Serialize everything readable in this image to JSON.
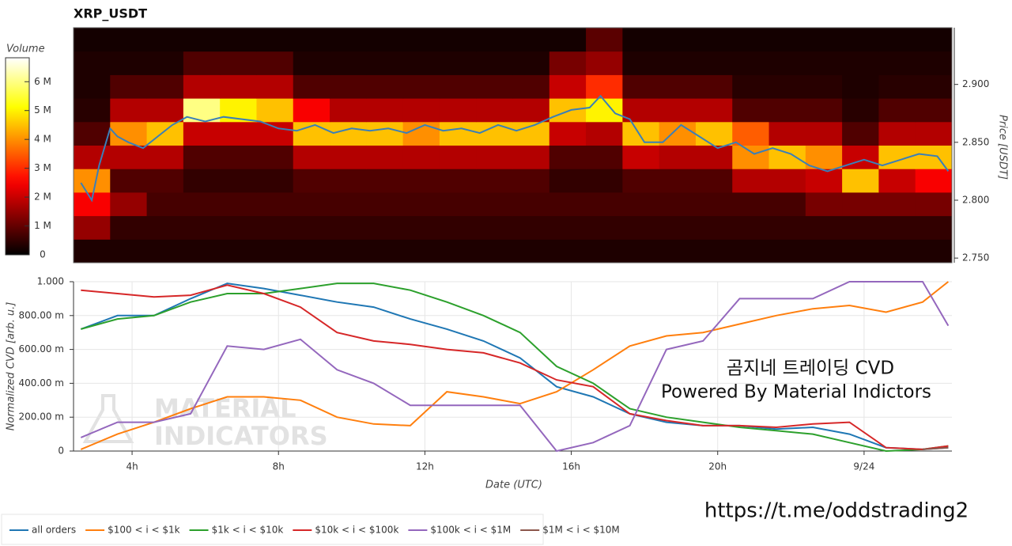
{
  "chart_data": [
    {
      "type": "heatmap",
      "title": "XRP_USDT",
      "colormap": "hot",
      "xlim": [
        2.4,
        26.4
      ],
      "x_bins": [
        2.4,
        3.4,
        4.4,
        5.4,
        6.4,
        7.4,
        8.4,
        9.4,
        10.4,
        11.4,
        12.4,
        13.4,
        14.4,
        15.4,
        16.4,
        17.4,
        18.4,
        19.4,
        20.4,
        21.4,
        22.4,
        23.4,
        24.4,
        25.4,
        26.4
      ],
      "y_bins": [
        2.746,
        2.7663,
        2.7866,
        2.8069,
        2.8272,
        2.8475,
        2.8678,
        2.8881,
        2.9084,
        2.9287,
        2.949
      ],
      "values": [
        [
          300000,
          300000,
          300000,
          300000,
          300000,
          300000,
          300000,
          300000,
          300000,
          300000,
          300000,
          300000,
          300000,
          300000,
          300000,
          300000,
          300000,
          300000,
          300000,
          300000,
          300000,
          300000,
          300000,
          300000
        ],
        [
          1500000,
          500000,
          500000,
          500000,
          500000,
          500000,
          500000,
          500000,
          500000,
          500000,
          500000,
          500000,
          500000,
          500000,
          500000,
          500000,
          500000,
          500000,
          500000,
          500000,
          500000,
          500000,
          500000,
          500000
        ],
        [
          2500000,
          1500000,
          700000,
          700000,
          700000,
          700000,
          700000,
          700000,
          700000,
          700000,
          700000,
          700000,
          700000,
          700000,
          700000,
          700000,
          700000,
          700000,
          700000,
          700000,
          1200000,
          1200000,
          1200000,
          1200000
        ],
        [
          4000000,
          800000,
          800000,
          500000,
          500000,
          500000,
          800000,
          800000,
          800000,
          800000,
          800000,
          800000,
          800000,
          500000,
          500000,
          800000,
          800000,
          800000,
          1800000,
          1800000,
          2000000,
          4500000,
          2000000,
          2500000
        ],
        [
          1800000,
          1800000,
          1800000,
          800000,
          800000,
          800000,
          1800000,
          1800000,
          1800000,
          1800000,
          1800000,
          1800000,
          1800000,
          800000,
          800000,
          2000000,
          1800000,
          1800000,
          4000000,
          4500000,
          4000000,
          2000000,
          4500000,
          4500000
        ],
        [
          800000,
          4000000,
          4500000,
          2000000,
          2000000,
          2000000,
          4500000,
          4500000,
          4500000,
          4000000,
          4500000,
          4500000,
          4500000,
          2000000,
          1800000,
          4500000,
          4000000,
          4500000,
          3500000,
          1800000,
          1800000,
          800000,
          1800000,
          1800000
        ],
        [
          400000,
          1800000,
          1800000,
          6000000,
          5000000,
          4500000,
          2500000,
          1800000,
          1800000,
          1800000,
          1800000,
          1800000,
          1800000,
          4500000,
          5000000,
          1800000,
          1800000,
          1800000,
          800000,
          800000,
          800000,
          400000,
          800000,
          800000
        ],
        [
          300000,
          800000,
          800000,
          1800000,
          1800000,
          1800000,
          800000,
          800000,
          800000,
          800000,
          800000,
          800000,
          800000,
          2000000,
          3000000,
          800000,
          800000,
          800000,
          400000,
          400000,
          400000,
          300000,
          400000,
          400000
        ],
        [
          300000,
          300000,
          300000,
          800000,
          800000,
          800000,
          300000,
          300000,
          300000,
          300000,
          300000,
          300000,
          300000,
          1200000,
          1500000,
          300000,
          300000,
          300000,
          300000,
          300000,
          300000,
          300000,
          300000,
          300000
        ],
        [
          200000,
          200000,
          200000,
          200000,
          200000,
          200000,
          200000,
          200000,
          200000,
          200000,
          200000,
          200000,
          200000,
          200000,
          900000,
          200000,
          200000,
          200000,
          200000,
          200000,
          200000,
          200000,
          200000,
          200000
        ]
      ],
      "colorbar": {
        "label": "Volume",
        "lim": [
          0,
          6830000
        ],
        "ticks": [
          0,
          {
            "value": 1000000,
            "label": "1 M"
          },
          {
            "value": 2000000,
            "label": "2 M"
          },
          {
            "value": 3000000,
            "label": "3 M"
          },
          {
            "value": 4000000,
            "label": "4 M"
          },
          {
            "value": 5000000,
            "label": "5 M"
          },
          {
            "value": 6000000,
            "label": "6 M"
          }
        ]
      },
      "y_label": "Price [USDT]",
      "y_side": "right",
      "ylim": [
        2.746,
        2.949
      ],
      "yticks": [
        {
          "value": 2.75,
          "label": "2.750"
        },
        {
          "value": 2.8,
          "label": "2.800"
        },
        {
          "value": 2.85,
          "label": "2.850"
        },
        {
          "value": 2.9,
          "label": "2.900"
        }
      ],
      "price": {
        "color": "#3a7fb8",
        "x": [
          2.6,
          2.9,
          3.1,
          3.4,
          3.6,
          3.9,
          4.3,
          4.7,
          5.1,
          5.5,
          6.0,
          6.5,
          7.0,
          7.5,
          8.0,
          8.5,
          9.0,
          9.5,
          10.0,
          10.5,
          11.0,
          11.5,
          12.0,
          12.5,
          13.0,
          13.5,
          14.0,
          14.5,
          15.0,
          15.5,
          16.0,
          16.5,
          16.8,
          17.2,
          17.6,
          18.0,
          18.5,
          19.0,
          19.5,
          20.0,
          20.5,
          21.0,
          21.5,
          22.0,
          22.5,
          23.0,
          23.5,
          24.0,
          24.5,
          25.0,
          25.5,
          26.0,
          26.3
        ],
        "values": [
          2.815,
          2.8,
          2.83,
          2.862,
          2.855,
          2.85,
          2.845,
          2.855,
          2.865,
          2.872,
          2.868,
          2.872,
          2.87,
          2.868,
          2.862,
          2.86,
          2.865,
          2.858,
          2.862,
          2.86,
          2.862,
          2.858,
          2.865,
          2.86,
          2.862,
          2.858,
          2.865,
          2.86,
          2.865,
          2.872,
          2.878,
          2.88,
          2.89,
          2.875,
          2.87,
          2.85,
          2.85,
          2.865,
          2.855,
          2.845,
          2.85,
          2.84,
          2.845,
          2.84,
          2.83,
          2.825,
          2.83,
          2.835,
          2.83,
          2.835,
          2.84,
          2.838,
          2.825
        ]
      }
    },
    {
      "type": "line",
      "x_label": "Date (UTC)",
      "y_label": "Normalized CVD [arb. u.]",
      "xlim": [
        2.4,
        26.4
      ],
      "xticks": [
        {
          "value": 4,
          "label": "4h"
        },
        {
          "value": 8,
          "label": "8h"
        },
        {
          "value": 12,
          "label": "12h"
        },
        {
          "value": 16,
          "label": "16h"
        },
        {
          "value": 20,
          "label": "20h"
        },
        {
          "value": 24,
          "label": "9/24"
        }
      ],
      "ylim": [
        0,
        1
      ],
      "yticks": [
        0,
        {
          "value": 0.2,
          "label": "200.00 m"
        },
        {
          "value": 0.4,
          "label": "400.00 m"
        },
        {
          "value": 0.6,
          "label": "600.00 m"
        },
        {
          "value": 0.8,
          "label": "800.00 m"
        },
        {
          "value": 1,
          "label": "1.000"
        }
      ],
      "grid": true,
      "legend": "bottom",
      "x": [
        2.6,
        3.6,
        4.6,
        5.6,
        6.6,
        7.6,
        8.6,
        9.6,
        10.6,
        11.6,
        12.6,
        13.6,
        14.6,
        15.6,
        16.6,
        17.6,
        18.6,
        19.6,
        20.6,
        21.6,
        22.6,
        23.6,
        24.6,
        25.6,
        26.3
      ],
      "series": [
        {
          "name": "all orders",
          "color": "#1f77b4",
          "values": [
            0.72,
            0.8,
            0.8,
            0.9,
            0.99,
            0.96,
            0.92,
            0.88,
            0.85,
            0.78,
            0.72,
            0.65,
            0.55,
            0.38,
            0.32,
            0.22,
            0.17,
            0.15,
            0.15,
            0.13,
            0.14,
            0.1,
            0.02,
            0.01,
            0.02
          ]
        },
        {
          "name": "$100 < i < $1k",
          "color": "#ff7f0e",
          "values": [
            0.01,
            0.1,
            0.17,
            0.25,
            0.32,
            0.32,
            0.3,
            0.2,
            0.16,
            0.15,
            0.35,
            0.32,
            0.28,
            0.35,
            0.48,
            0.62,
            0.68,
            0.7,
            0.75,
            0.8,
            0.84,
            0.86,
            0.82,
            0.88,
            1.0
          ]
        },
        {
          "name": "$1k < i < $10k",
          "color": "#2ca02c",
          "values": [
            0.72,
            0.78,
            0.8,
            0.88,
            0.93,
            0.93,
            0.96,
            0.99,
            0.99,
            0.95,
            0.88,
            0.8,
            0.7,
            0.5,
            0.4,
            0.25,
            0.2,
            0.17,
            0.14,
            0.12,
            0.1,
            0.05,
            0.0,
            0.01,
            0.03
          ]
        },
        {
          "name": "$10k < i < $100k",
          "color": "#d62728",
          "values": [
            0.95,
            0.93,
            0.91,
            0.92,
            0.98,
            0.93,
            0.85,
            0.7,
            0.65,
            0.63,
            0.6,
            0.58,
            0.52,
            0.42,
            0.38,
            0.22,
            0.18,
            0.15,
            0.15,
            0.14,
            0.16,
            0.17,
            0.02,
            0.01,
            0.03
          ]
        },
        {
          "name": "$100k < i < $1M",
          "color": "#9467bd",
          "values": [
            0.08,
            0.17,
            0.17,
            0.22,
            0.62,
            0.6,
            0.66,
            0.48,
            0.4,
            0.27,
            0.27,
            0.27,
            0.27,
            0.0,
            0.05,
            0.15,
            0.6,
            0.65,
            0.9,
            0.9,
            0.9,
            1.0,
            1.0,
            1.0,
            0.74
          ]
        },
        {
          "name": "$1M < i < $10M",
          "color": "#8c564b",
          "values": [
            null,
            null,
            null,
            null,
            null,
            null,
            null,
            null,
            null,
            null,
            null,
            null,
            null,
            null,
            null,
            null,
            null,
            null,
            null,
            null,
            null,
            null,
            null,
            0.01,
            0.02
          ]
        }
      ]
    }
  ],
  "watermark": [
    "MATERIAL",
    "INDICATORS"
  ],
  "overlay": {
    "line1": "곰지네 트레이딩 CVD",
    "line2": "Powered By Material Indictors",
    "url": "https://t.me/oddstrading2"
  }
}
